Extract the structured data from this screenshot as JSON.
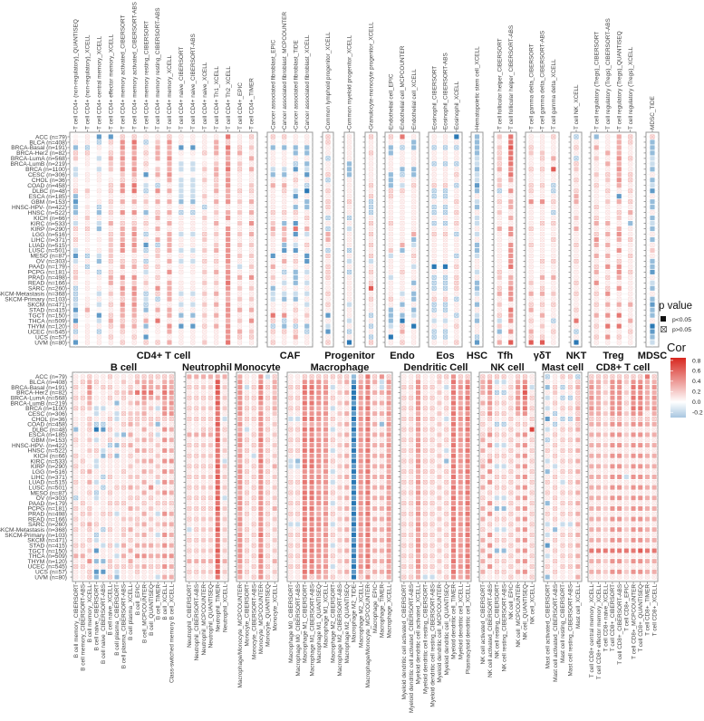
{
  "chart_data": {
    "type": "heatmap",
    "value_encoding": {
      "1-8": "significant cor = n/10",
      "a-d": "significant cor = -n/10",
      "0": "significant cor ~0",
      "x": "p>0.05 slight positive",
      "y": "p>0.05 slight negative",
      ".": "p>0.05 ~0"
    },
    "rows": [
      "ACC (n=79)",
      "BLCA (n=408)",
      "BRCA-Basal (n=191)",
      "BRCA-Her2 (n=82)",
      "BRCA-LumA (n=568)",
      "BRCA-LumB (n=219)",
      "BRCA (n=1100)",
      "CESC (n=306)",
      "CHOL (n=36)",
      "COAD (n=458)",
      "DLBC (n=48)",
      "ESCA (n=185)",
      "GBM (n=153)",
      "HNSC-HPV- (n=422)",
      "HNSC (n=522)",
      "KICH (n=66)",
      "KIRC (n=533)",
      "KIRP (n=290)",
      "LGG (n=516)",
      "LIHC (n=371)",
      "LUAD (n=515)",
      "LUSC (n=501)",
      "MESO (n=87)",
      "OV (n=303)",
      "PAAD (n=179)",
      "PCPG (n=181)",
      "PRAD (n=498)",
      "READ (n=166)",
      "SARC (n=260)",
      "SKCM-Metastasis (n=368)",
      "SKCM-Primary (n=103)",
      "SKCM (n=471)",
      "STAD (n=415)",
      "TGCT (n=150)",
      "THCA (n=509)",
      "THYM (n=120)",
      "UCEC (n=545)",
      "UCS (n=57)",
      "UVM (n=80)"
    ],
    "top_groups": [
      {
        "name": "CD4+ T cell",
        "columns": [
          {
            "label": "T cell CD4+ (non-regulatory)_QUANTISEQ",
            "cells": "0.bx20aa..xbcbb.ax.x.aca.x2.yyyacacxy.c"
          },
          {
            "label": "T cell CD4+ (non-regulatory)_XCELL",
            "cells": "..yx..0..02.01.2.x..0.y.y.0..0..3.0...."
          },
          {
            "label": "T cell CD4+ central memory_XCELL",
            "cells": "cy.0a0a..0.0.yb.ab0.0.ab0y.0.a.a0ca.y.."
          },
          {
            "label": "T cell CD4+ effector memory_XCELL",
            "cells": "cx.x3220.xx.x1x.3.x2222x.x33.2.x.x3x.x."
          },
          {
            "label": "T cell CD4+ memory activated_CIBERSORT",
            "cells": "x4434342x44.3.4.x33344.x3.4243x433x3x.x"
          },
          {
            "label": "T cell CD4+ memory activated_CIBERSORT-ABS",
            "cells": "x5434343x55.3.4.x34343.x3.42443433x3.x."
          },
          {
            "label": "T cell CD4+ memory resting_CIBERSORT",
            "cells": ".y.x.x.c0ay.2.b.x.y.cy.yxa.2.yayb.3b.cx"
          },
          {
            "label": "T cell CD4+ memory resting_CIBERSORT-ABS",
            "cells": ".2333023.y4.3.x3.3.3yx2.x.x.4xy.3.5..0x"
          },
          {
            "label": "T cell CD4+ memory_XCELL",
            "cells": "x43343343.3.3.3.3.3333.3.4.3333.33.43.3"
          },
          {
            "label": "T cell CD4+ naive_CIBERSORT",
            "cells": "..c.0aa0aaaab.y...a..a.a..0..a.a.b.c..."
          },
          {
            "label": "T cell CD4+ naive_CIBERSORT-ABS",
            "cells": "..c.0aa0aaaab.y...a..a.a..0..a.a.b.c..."
          },
          {
            "label": "T cell CD4+ naive_XCELL",
            "cells": "...x0.2.2..2.y.2..x2.2.x.2.2.2.2.2.x..2"
          },
          {
            "label": "T cell CD4+ Th1_XCELL",
            "cells": ".333.233x23.3.2.3.2.23.x.3.2.3.3.3.3..."
          },
          {
            "label": "T cell CD4+ Th2_XCELL",
            "cells": "5x54345344334.34.4444444344543344434445"
          },
          {
            "label": "T cell CD4+_EPIC",
            "cells": "..x3.2x...x.2.2.2.2.2.2.a.3.2.2.3.2.3x."
          },
          {
            "label": "T cell CD4+_TIMER",
            "cells": "x.2.3.3..2x.3.3.4.3.2.2.2.4.2.2.3.4.2x."
          }
        ]
      },
      {
        "name": "CAF",
        "columns": [
          {
            "label": "Cancer associated fibroblast_EPIC",
            "cells": "x.b...ab.3....x.232...c.3.2.baa..5xyx.x"
          },
          {
            "label": "Cancer associated fibroblast_MCPCOUNTER",
            "cells": "x.b...ab.3x...x.b323bc.3.y.a.ab..4ybx."
          },
          {
            "label": "Cancer associated fibroblast_TIDE",
            "cells": "..bb.yc.x.ac.bx.c5c.ac.x.bbb.ab.x.xyx3"
          },
          {
            "label": "Cancer associated fibroblast_XCELL",
            "cells": "..bb.bac.yd.bb.x.3a0x.cc.a.a.a.a.2.by."
          }
        ]
      },
      {
        "name": "Progenitor",
        "columns": [
          {
            "label": "Common lymphoid progenitor_XCELL",
            "cells": "xx..y..xy.x.xx.y.y33.yx.xxx..x.x.c.ac.x"
          },
          {
            "label": "Common myeloid progenitor_XCELL",
            "cells": ".....bbb....x..y.a...y.a.y.....a..a.y.d"
          },
          {
            "label": "Granulocyte-monocyte progenitor_XCELL",
            "cells": "x..x.....x.xyyy.x.x.x.xa.x.x6.x..y.y.yx"
          }
        ]
      },
      {
        "name": "Endo",
        "columns": [
          {
            "label": "Endothelial cell_EPIC",
            "cells": "x.bb...bbbxx....x....2a...a...x.bbba.d."
          },
          {
            "label": "Endothelial cell_MCPCOUNTER",
            "cells": "5.y...by.ax.........3b...x...a.b.bdx3.x"
          },
          {
            "label": "Endothelial cell_XCELL",
            "cells": ".bb...bb.x........3ba.x.a..b.bb.ba.d..."
          }
        ]
      },
      {
        "name": "Eos",
        "columns": [
          {
            "label": "Eosinophil_CIBERSORT",
            "cells": "..y..y...xyy.yy.y.x.....d.yyy.xyy.a.yy."
          },
          {
            "label": "Eosinophil_CIBERSORT-ABS",
            "cells": "..y..y...xyy.yy.y.x.....d.yyy.xyy.a.yy."
          },
          {
            "label": "Eosinophil_XCELL",
            "cells": "d.y..y.x.y..x.x.x.y...y.x.xxx.y..y.x..x"
          }
        ]
      },
      {
        "name": "HSC",
        "columns": [
          {
            "label": "Hematopoietic stem cell_XCELL",
            "cells": "bbbbaabaacb.ab.aa.a.bba..a.bba.b.ab..yc"
          }
        ]
      },
      {
        "name": "Tfh",
        "columns": [
          {
            "label": "T cell follicular helper_CIBERSORT",
            "cells": "2.2x2x3.22y.x.2..3.......x2.x3.2.xa2b.3"
          },
          {
            "label": "T cell follicular helper_CIBERSORT-ABS",
            "cells": "556555453.4.33.3.44.44445.33444.544.4.6"
          }
        ]
      },
      {
        "name": "γδT",
        "columns": [
          {
            "label": "T cell gamma delta_CIBERSORT",
            "cells": "..x2..x..xx.4....x..x......2.3.x3.x.3x6"
          },
          {
            "label": "T cell gamma delta_CIBERSORT-ABS",
            "cells": "...2x.x..x..4...x......x..3.x3.x.3.2.x6"
          },
          {
            "label": "T cell gamma delta_XCELL",
            "cells": "x...3.6..yy.x.y.x..x...x..3..2.x..y.x.."
          }
        ]
      },
      {
        "name": "NKT",
        "columns": [
          {
            "label": "T cell NK_XCELL",
            "cells": "y.x.yx2.x.x33..2.3..x..x...x.x..x.5.y.d"
          }
        ]
      },
      {
        "name": "Treg",
        "columns": [
          {
            "label": "T cell regulatory (Tregs)_CIBERSORT",
            "cells": "b.3.2..2.x...x.x3.x43.3.x3.4.x.x.3.x.x."
          },
          {
            "label": "T cell regulatory (Tregs)_CIBERSORT-ABS",
            "cells": "...3.3.x2.x.2...3.3.3.3.4.x.x4.3.4.5.4."
          },
          {
            "label": "T cell regulatory (Tregs)_QUANTISEQ",
            "cells": "3333434343.c3.x2.343.4.x443.4..3.5.5.x."
          },
          {
            "label": "T cell regulatory (Tregs)_XCELL",
            "cells": "xx..x..xx.x.x.3.b..x..x..x.....3..3.x.."
          }
        ]
      },
      {
        "name": "MDSC",
        "columns": [
          {
            "label": "MDSC_TIDE",
            "cells": "xbbbaab.bac.bb.bab.b.2.bbc.ab.bcbb.dcba"
          }
        ]
      }
    ],
    "bottom_groups": [
      {
        "name": "B cell",
        "columns": [
          {
            "label": "B cell memory_CIBERSORT",
            "cells": "..x.x.x0..b.x.0x.x..x..y.x.x.x..x.3.x.."
          },
          {
            "label": "B cell memory_CIBERSORT-ABS",
            "cells": ".x..x.x.........x.x.....x.x.x...x.3.x.."
          },
          {
            "label": "B cell memory_XCELL",
            "cells": "x3443320x2x.2.2.0.3.3.x..x2.3x.x.2.4.xx"
          },
          {
            "label": "B cell naive_CIBERSORT",
            "cells": ".x.0.0aa.yd.a.x.aa..a.ya.0..x.ya.c.b.cb"
          },
          {
            "label": "B cell naive_CIBERSORT-ABS",
            "cells": "..x...a..yc...ab...y.y....x..y..a..b.c."
          },
          {
            "label": "B cell naive_XCELL",
            "cells": "x.x.x.0.x.x.xy.x...x..x.x.x..x..x..2x.x"
          },
          {
            "label": "B cell plasma_CIBERSORT",
            "cells": "...x.b.aa..a.b.b.....x..x.a.....a.a.xab"
          },
          {
            "label": "B cell plasma_CIBERSORT-ABS",
            "cells": ".2.2x..x.x.b.x....x..x..x..2.x2.3.3.x.."
          },
          {
            "label": "B cell plasma_XCELL",
            "cells": "..x3.2.2x3.3.3.x.2.2.3.x.3.2.3.x.3.3x.."
          },
          {
            "label": "B cell_EPIC",
            "cells": "x3.5.3.2x2..2.3.2..2.2.x.2.x2.2.3.4.2x."
          },
          {
            "label": "B cell_MCPCOUNTER",
            "cells": "x3454323x.3.3.3.3.3.3.3.x.3.3.3.3.4.3.."
          },
          {
            "label": "B cell_QUANTISEQ",
            "cells": "x3353.2.x2.x2.x.3.2..4.x.2.2.2..3.3.x.."
          },
          {
            "label": "B cell_TIMER",
            "cells": "x.3.3.a.xb.a.2.2.2.2a.2.x.a.2.a.2.3.x.a"
          },
          {
            "label": "B cell_XCELL",
            "cells": "x3454344x.4.4.4.4.4.4.4.x.4.3.4.4.4.4.3"
          },
          {
            "label": "Class-switched memory B cell_XCELL",
            "cells": "x3343434x.3.3.3.4.3.3.3.x.3.3.3.3.4.3.3"
          }
        ]
      },
      {
        "name": "Neutrophil",
        "columns": [
          {
            "label": "Neutrophil_CIBERSORT",
            "cells": "3.x.x.x.x..3.x.x.x.x.x.x.x.x.a.x.x.3.x."
          },
          {
            "label": "Neutrophil_CIBERSORT-ABS",
            "cells": "3.x.x.x.x..3.x.x.x.x.x.x.x.x.x.x.x.3.x."
          },
          {
            "label": "Neutrophil_MCPCOUNTER",
            "cells": "3.2.x.2.x.x3.2.2.x.2.2.x.x.2.2.2.2.3.2."
          },
          {
            "label": "Neutrophil_QUANTISEQ",
            "cells": "3.2.x.2.x.x3.2.2.x.2.2.x.x.2.2.2.2.3.2."
          },
          {
            "label": "Neutrophil_TIMER",
            "cells": "366656555655655556565656565556555656565"
          },
          {
            "label": "Neutrophil_XCELL",
            "cells": "3.2.2.2.a.x.2.2.a2.2.2.a.2.2.2.2.2.3.2."
          }
        ]
      },
      {
        "name": "Monocyte",
        "columns": [
          {
            "label": "Macrophage/Monocyte_MCPCOUNTER",
            "cells": "344444443434443434444434443443444444343"
          },
          {
            "label": "Monocyte_CIBERSORT",
            "cells": "..a.x.x.x.a.x.x.x.x.x.x.x.x..x.x.x.x.x."
          },
          {
            "label": "Monocyte_CIBERSORT-ABS",
            "cells": "..x.x.x.x..x.x.a.x.x.x.x.x..x.x.x.x.x.x"
          },
          {
            "label": "Monocyte_MCPCOUNTER",
            "cells": "445454344444544454444444444444544454444"
          },
          {
            "label": "Monocyte_QUANTISEQ",
            "cells": "a.x.x.x.x.x.x.x.x.x.x.x.x.x.x.x.x.x.x.x"
          },
          {
            "label": "Monocyte_XCELL",
            "cells": "x3323232.2.2.2.2.3.2.2.2.3.2.2.2.2.3.2."
          }
        ]
      },
      {
        "name": "Macrophage",
        "columns": [
          {
            "label": "Macrophage M0_CIBERSORT",
            "cells": "..x.x.x.a.x.x.x.aa..x.x.x.x.a.x.x.x.x.."
          },
          {
            "label": "Macrophage M0_CIBERSORT-ABS",
            "cells": "..x.x.x.a.x.x.x.ba..x.x.x.x.a.x.x.x.x.."
          },
          {
            "label": "Macrophage M1_CIBERSORT",
            "cells": "x45545445354545455445455454545454545454"
          },
          {
            "label": "Macrophage M1_CIBERSORT-ABS",
            "cells": "x4554544535454545544545545454545454545x"
          },
          {
            "label": "Macrophage M1_QUANTISEQ",
            "cells": "x44444344343444444344344433444344443443"
          },
          {
            "label": "Macrophage M1_XCELL",
            "cells": "x34434343343434343434343434343434343433"
          },
          {
            "label": "Macrophage M2_CIBERSORT",
            "cells": "x.a.x.a.x.a.x.a.x.a.a.x.a.x.a.x.a.x.a.x"
          },
          {
            "label": "Macrophage M2_CIBERSORT-ABS",
            "cells": "x2.2.2.2.2.2.2.2.2.2.2.2.2.2.2.2.2.2.2."
          },
          {
            "label": "Macrophage M2_QUANTISEQ",
            "cells": "x3.3.3.3.3.3.3.3.3.3.3.3.3.3.3.3.3.3.3."
          },
          {
            "label": "Macrophage M2_TIDE",
            "cells": "bcdddcdcdcdcdcdcdcdcdcdcdcdcdcdcdcdcdcd"
          },
          {
            "label": "Macrophage M2_XCELL",
            "cells": "x3434343434343434343434343434343434343x"
          },
          {
            "label": "Macrophage/Monocyte_MCPCOUNTER",
            "cells": "5454545454545454545454545454545454545x4"
          },
          {
            "label": "Macrophage_EPIC",
            "cells": "x3.3.3.3.3.3.3.3.3.3.3.3.3.3.3.3.3.3.3."
          },
          {
            "label": "Macrophage_TIMER",
            "cells": "4aa3.3.3.b.3.3.3.3.3.3.3.3.3.3.3.3.3.3."
          },
          {
            "label": "Macrophage_XCELL",
            "cells": "x43434343434343434343434343434343434343"
          }
        ]
      },
      {
        "name": "Dendritic Cell",
        "columns": [
          {
            "label": "Myeloid dendritic cell activated_CIBERSORT",
            "cells": "..x.x.x.x.x.x.x.x.x.x.x.x.x.x.x.x.x.x.x"
          },
          {
            "label": "Myeloid dendritic cell activated_CIBERSORT-ABS",
            "cells": "..x.x.x.x.x.x.x.x.x.x.x.x.x.x.x.x.x.x.x"
          },
          {
            "label": "Myeloid dendritic cell activated_XCELL",
            "cells": "x44444434343444344334343434344344434433"
          },
          {
            "label": "Myeloid dendritic cell resting_CIBERSORT",
            "cells": "..x.x.x.x.x.x.x.x.x.x.x.x.x.x.x.x.x.x.a"
          },
          {
            "label": "Myeloid dendritic cell resting_CIBERSORT-ABS",
            "cells": "..x.x.x.x.x.x.x.x.x.x.x.x.x.x.x.x.x.x.a"
          },
          {
            "label": "Myeloid dendritic cell_MCPCOUNTER",
            "cells": "x2.2.2.2.2.2.2.2.2.2.2.2.2.2.2.2.2.2.2."
          },
          {
            "label": "Myeloid dendritic cell_QUANTISEQ",
            "cells": "x.a.x.x.a.x.x.a.b.x.x.x.x.x.x.x.x.x.x.x"
          },
          {
            "label": "Myeloid dendritic cell_TIMER",
            "cells": "454545454545454545454545454545454545454"
          },
          {
            "label": "Myeloid dendritic cell_XCELL",
            "cells": "x34343434343434343434343434343434343433"
          },
          {
            "label": "Plasmacytoid dendritic cell_XCELL",
            "cells": "x45454545454545454545454545454545454544"
          }
        ]
      },
      {
        "name": "NK cell",
        "columns": [
          {
            "label": "NK cell activated_CIBERSORT",
            "cells": "x333.3.x.x.x3.3.x3.3.3.x.3.3.x.3.3.3.3."
          },
          {
            "label": "NK cell activated_CIBERSORT-ABS",
            "cells": "x4443434x.x4.4.x4.4.4.x.4.4.x.4.4.4.4.."
          },
          {
            "label": "NK cell resting_CIBERSORT",
            "cells": "xa.y.x.x.y.x.a.x.a.x.x.a.b.x.a.x.b.x.x."
          },
          {
            "label": "NK cell resting_CIBERSORT-ABS",
            "cells": "xa.y.x.x.y.x.a.x.a.x.x.a.b.x.a.x.b.x.x."
          },
          {
            "label": "NK cell_EPIC",
            "cells": "..x.x.x.x.x.x.x.x.x.x.x.x.x.x.x.x.x.x.x"
          },
          {
            "label": "NK cell_MCPCOUNTER",
            "cells": "x3434343.x.3.3.3.3.3.3.3.3.3.3.3.3.3.3."
          },
          {
            "label": "NK cell_QUANTISEQ",
            "cells": "x4565454.x.4.4.4.4.4.4.4.4.4.4.4.4.4.4."
          },
          {
            "label": "NK cell_XCELL",
            "cells": "..a.x.x.x.7.x.x.x.x.x.x.x.x.x.x.x.x.x.x"
          }
        ]
      },
      {
        "name": "Mast cell",
        "columns": [
          {
            "label": "Mast cell activated_CIBERSORT",
            "cells": "y.b.a.a.c.a.y.x.a.b.x.x.b.x.a.a.c.a.x.b"
          },
          {
            "label": "Mast cell activated_CIBERSORT-ABS",
            "cells": "..x2.x.y.y.x.x.x.a.x.x.x.x.x.b.x.x.x.x."
          },
          {
            "label": "Mast cell resting_CIBERSORT",
            "cells": "x.y.y.x.y.x.x.x.x.x.a.x.x.x.a.x.x.x.x.."
          },
          {
            "label": "Mast cell resting_CIBERSORT-ABS",
            "cells": "x.x.y.x.y.x.x.x.x.x.x.x.x.x.a.x.x.x.x.."
          },
          {
            "label": "Mast cell_XCELL",
            "cells": "yx3xxx3x3x3.3.3.3.3.3.3.3.3.3.3.3.3.3.3"
          }
        ]
      },
      {
        "name": "CD8+ T cell",
        "columns": [
          {
            "label": "T cell CD8+ central memory_XCELL",
            "cells": "x3434343x3.3.3.3.3.3.3.3.3.3.3.3.5.3.3."
          },
          {
            "label": "T cell CD8+ effector memory_XCELL",
            "cells": "x3333333x3.3.3.3.3.3.3.3.3.3.3.3.5.3.3."
          },
          {
            "label": "T cell CD8+ naive_XCELL",
            "cells": "x2.2.2.2.2.2.2.2.2.2.2.2.2.2.2.2.5.2.2."
          },
          {
            "label": "T cell CD8+_CIBERSORT",
            "cells": "x4444444x4.4.4.4.4.4.4.4.4.4.4.4.5.4.4."
          },
          {
            "label": "T cell CD8+_CIBERSORT-ABS",
            "cells": "x4444444x4.4.4.4.4.4.4.4.4.4.4.4.5.4.4."
          },
          {
            "label": "T cell CD8+_EPIC",
            "cells": "x2.2.x.2.2.2.2.2.2.a.2.2.2.2.2.2.5.2.2."
          },
          {
            "label": "T cell CD8+_MCPCOUNTER",
            "cells": "x4545454x4.4.4.4.4.4.4.4.4.4.4.4.5.4.4."
          },
          {
            "label": "T cell CD8+_QUANTISEQ",
            "cells": "x4545454x4.4.4.4.4.4.4.4.4.4.4.4.6.4.4."
          },
          {
            "label": "T cell CD8+_TIMER",
            "cells": "5333333.x3.3.3.3.3.3.3.3.3.3.3.3.5.3.3."
          },
          {
            "label": "T cell CD8+_XCELL",
            "cells": "x3434343x3.3.3.3.3.3.3.3.3.3.3.3.5.3.3."
          }
        ]
      }
    ],
    "legend": {
      "p_title": "p value",
      "p_items": [
        "p<0.05",
        "p>0.05"
      ],
      "cor_title": "Cor",
      "cor_ticks": [
        "0.8",
        "0.6",
        "0.4",
        "0.2",
        "0.0",
        "-0.2"
      ],
      "cor_range": [
        -0.3,
        0.85
      ]
    },
    "colors": {
      "positive": "#d7261e",
      "negative": "#2b78b4",
      "zero": "#ffffff"
    }
  }
}
